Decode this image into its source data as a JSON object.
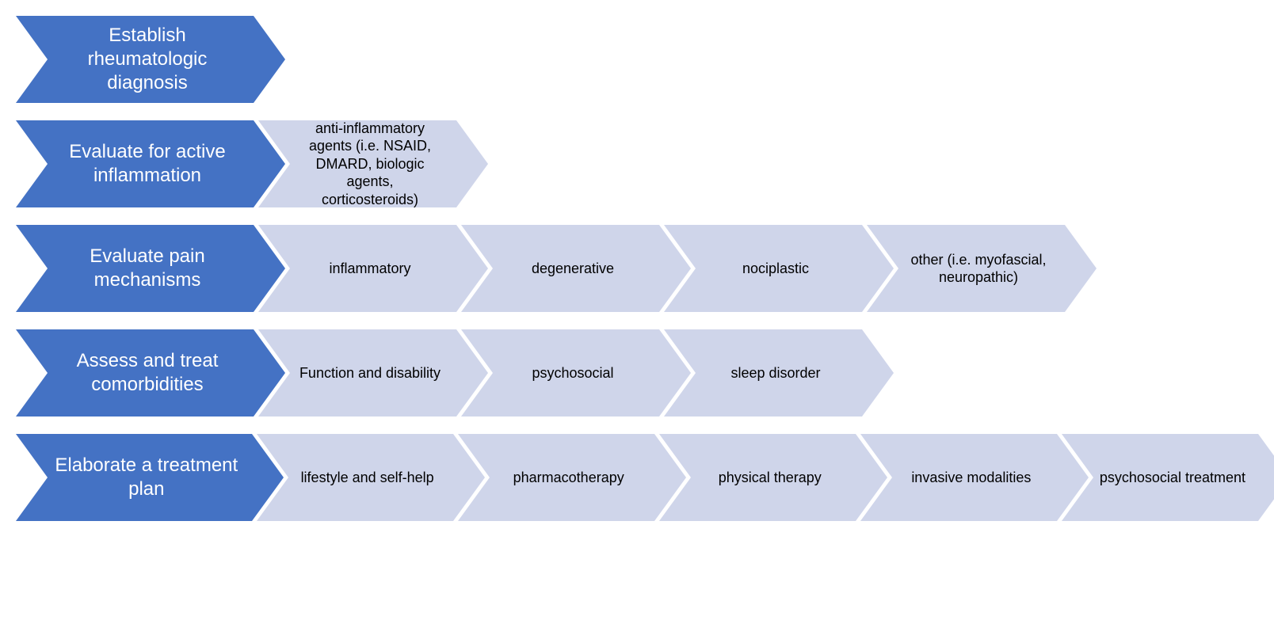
{
  "type": "flowchart",
  "background_color": "#ffffff",
  "primary_color": "#4472c4",
  "secondary_color": "#cfd5ea",
  "primary_text_color": "#ffffff",
  "secondary_text_color": "#000000",
  "primary_fontsize": 24,
  "secondary_fontsize": 18,
  "chevron_height": 110,
  "chevron_notch": 40,
  "primary_width": 300,
  "secondary_width": 250,
  "row_gap": 22,
  "rows": [
    {
      "primary": "Establish rheumatologic diagnosis",
      "items": []
    },
    {
      "primary": "Evaluate for active inflammation",
      "items": [
        "anti-inflammatory agents (i.e. NSAID, DMARD, biologic agents, corticosteroids)"
      ]
    },
    {
      "primary": "Evaluate pain mechanisms",
      "items": [
        "inflammatory",
        "degenerative",
        "nociplastic",
        "other (i.e. myofascial, neuropathic)"
      ]
    },
    {
      "primary": "Assess and treat comorbidities",
      "items": [
        "Function and disability",
        "psychosocial",
        "sleep disorder"
      ]
    },
    {
      "primary": "Elaborate a treatment plan",
      "items": [
        "lifestyle and self-help",
        "pharmacotherapy",
        "physical therapy",
        "invasive modalities",
        "psychosocial treatment"
      ]
    }
  ]
}
